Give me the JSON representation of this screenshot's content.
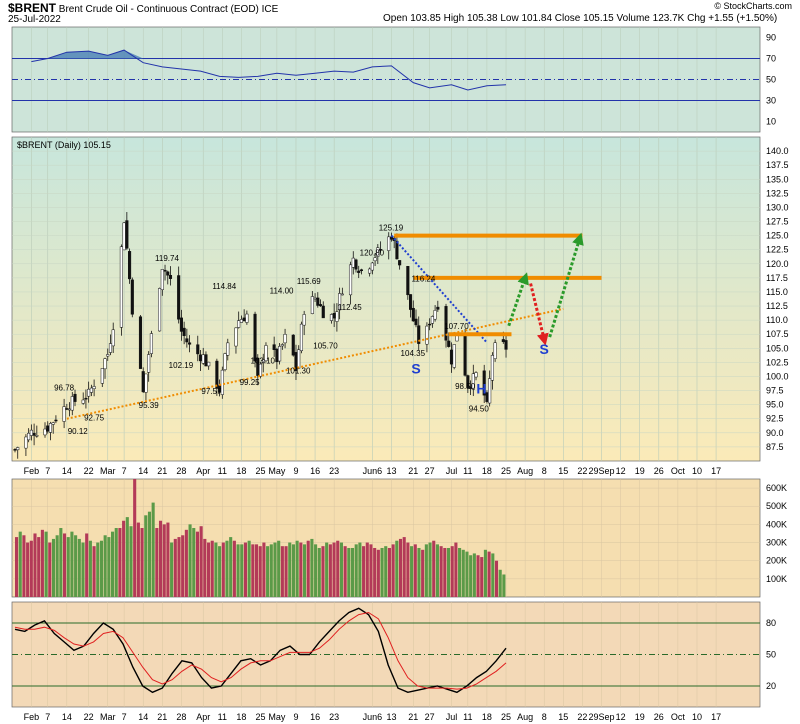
{
  "header": {
    "symbol": "$BRENT",
    "name": "Brent Crude Oil - Continuous Contract (EOD)",
    "exchange": "ICE",
    "date": "25-Jul-2022",
    "ohlc": "Open 103.85  High 105.38  Low 101.84  Close 105.15  Volume 123.7K  Chg +1.55 (+1.50%)",
    "copyright": "© StockCharts.com"
  },
  "colors": {
    "rsi_bg": "#cde4d9",
    "price_bg_top": "#c7e6dc",
    "price_bg_bottom": "#fbeab8",
    "volume_bg": "#f5deb0",
    "stoch_bg": "#f3d9b7",
    "up_bar": "#5b9a48",
    "down_bar": "#b33a58",
    "orange": "#f08c00",
    "blue_dotted": "#1f3fd0",
    "red_arrow": "#e02020",
    "green_arrow": "#2a9a2a",
    "rsi_line": "#2233aa",
    "stoch_k": "#000000",
    "stoch_d": "#e02020"
  },
  "chart_data": [
    {
      "type": "line",
      "panel": "rsi",
      "ylim": [
        0,
        100
      ],
      "ticks": [
        90,
        70,
        50,
        30,
        10
      ],
      "reference_levels": [
        70,
        50,
        30
      ],
      "x": [
        "Feb 1",
        "Feb 7",
        "Feb 14",
        "Feb 22",
        "Mar 1",
        "Mar 7",
        "Mar 14",
        "Mar 21",
        "Mar 28",
        "Apr 4",
        "Apr 11",
        "Apr 18",
        "Apr 25",
        "May 2",
        "May 9",
        "May 16",
        "May 23",
        "May 30",
        "Jun 6",
        "Jun 13",
        "Jun 21",
        "Jun 27",
        "Jul 5",
        "Jul 11",
        "Jul 18",
        "Jul 25"
      ],
      "series": [
        {
          "values": [
            67,
            70,
            76,
            77,
            73,
            78,
            66,
            62,
            60,
            58,
            53,
            52,
            53,
            56,
            54,
            56,
            58,
            57,
            62,
            63,
            47,
            42,
            45,
            40,
            44,
            45
          ]
        }
      ]
    },
    {
      "type": "line",
      "panel": "price",
      "title": "$BRENT (Daily) 105.15",
      "ylim": [
        85,
        142.5
      ],
      "y_ticks": [
        140,
        137.5,
        135,
        132.5,
        130,
        127.5,
        125,
        122.5,
        120,
        117.5,
        115,
        112.5,
        110,
        107.5,
        105,
        102.5,
        100,
        97.5,
        95,
        92.5,
        90,
        87.5
      ],
      "x_labels": [
        "Feb",
        "7",
        "14",
        "22",
        "Mar",
        "7",
        "14",
        "21",
        "28",
        "Apr",
        "11",
        "18",
        "25",
        "May",
        "9",
        "16",
        "23",
        "Jun6",
        "13",
        "21",
        "27",
        "Jul",
        "11",
        "18",
        "25",
        "Aug",
        "8",
        "15",
        "22",
        "29Sep",
        "12",
        "19",
        "26",
        "Oct",
        "10",
        "17"
      ],
      "x": [
        "Jan 26",
        "Feb 1",
        "Feb 7",
        "Feb 14",
        "Feb 22",
        "Mar 1",
        "Mar 4",
        "Mar 7",
        "Mar 10",
        "Mar 14",
        "Mar 16",
        "Mar 21",
        "Mar 24",
        "Mar 28",
        "Apr 1",
        "Apr 5",
        "Apr 11",
        "Apr 14",
        "Apr 18",
        "Apr 21",
        "Apr 25",
        "Apr 28",
        "May 2",
        "May 6",
        "May 9",
        "May 12",
        "May 16",
        "May 19",
        "May 23",
        "May 26",
        "May 30",
        "Jun 3",
        "Jun 6",
        "Jun 9",
        "Jun 13",
        "Jun 16",
        "Jun 21",
        "Jun 24",
        "Jun 27",
        "Jun 30",
        "Jul 5",
        "Jul 7",
        "Jul 11",
        "Jul 13",
        "Jul 15",
        "Jul 18",
        "Jul 20",
        "Jul 22",
        "Jul 25"
      ],
      "series": [
        {
          "values": [
            87,
            90.1,
            91,
            95,
            96.8,
            104,
            112,
            128,
            112,
            97,
            104,
            119.7,
            117,
            108,
            104.5,
            103.5,
            97.6,
            106,
            110,
            111,
            99.3,
            106,
            103.1,
            108,
            101.3,
            112,
            114,
            111.5,
            110.5,
            115.7,
            120.8,
            118,
            121,
            122.5,
            125.2,
            120,
            110,
            104.4,
            110,
            113,
            103,
            107.7,
            98.5,
            99.5,
            101,
            94.5,
            104,
            106,
            105.15
          ]
        }
      ],
      "annotations": [
        "96.78",
        "90.12",
        "92.75",
        "95.39",
        "119.74",
        "102.19",
        "97.57",
        "114.84",
        "103.10",
        "99.25",
        "114.00",
        "101.30",
        "115.69",
        "105.70",
        "112.45",
        "120.80",
        "125.19",
        "104.35",
        "116.24",
        "107.70",
        "98.50",
        "94.50"
      ],
      "pattern_labels": [
        "S",
        "H",
        "S"
      ],
      "support_line": {
        "from": {
          "x": "Feb 14",
          "y": 92.5
        },
        "to": {
          "x": "Aug 15",
          "y": 112
        }
      },
      "resistance_levels": [
        125,
        117.5,
        107.5
      ]
    },
    {
      "type": "bar",
      "panel": "volume",
      "ylim": [
        0,
        650
      ],
      "y_ticks": [
        "600K",
        "500K",
        "400K",
        "300K",
        "200K",
        "100K"
      ],
      "series": [
        {
          "name": "Volume (K)",
          "values": [
            330,
            360,
            340,
            300,
            310,
            350,
            330,
            370,
            360,
            300,
            320,
            340,
            380,
            350,
            330,
            360,
            340,
            320,
            300,
            350,
            310,
            280,
            300,
            310,
            340,
            330,
            360,
            380,
            380,
            420,
            440,
            390,
            650,
            410,
            380,
            450,
            470,
            520,
            380,
            420,
            400,
            410,
            300,
            320,
            330,
            340,
            370,
            400,
            380,
            360,
            390,
            320,
            300,
            310,
            300,
            280,
            300,
            310,
            330,
            310,
            290,
            290,
            300,
            310,
            290,
            290,
            280,
            300,
            280,
            290,
            300,
            310,
            280,
            280,
            300,
            290,
            310,
            300,
            290,
            310,
            320,
            290,
            270,
            280,
            300,
            290,
            300,
            310,
            300,
            280,
            270,
            270,
            290,
            300,
            280,
            300,
            290,
            270,
            260,
            270,
            280,
            270,
            290,
            310,
            320,
            330,
            300,
            280,
            290,
            270,
            260,
            290,
            300,
            310,
            290,
            280,
            270,
            270,
            280,
            300,
            270,
            260,
            250,
            230,
            240,
            230,
            220,
            260,
            250,
            240,
            200,
            150,
            124
          ]
        }
      ]
    },
    {
      "type": "line",
      "panel": "stochastic",
      "ylim": [
        0,
        100
      ],
      "y_ticks": [
        80,
        50,
        20
      ],
      "reference_levels": [
        80,
        50,
        20
      ],
      "series": [
        {
          "values": [
            74,
            72,
            78,
            82,
            70,
            62,
            54,
            58,
            70,
            80,
            74,
            60,
            38,
            20,
            14,
            18,
            32,
            44,
            42,
            28,
            18,
            20,
            32,
            44,
            46,
            40,
            44,
            54,
            58,
            50,
            50,
            62,
            72,
            82,
            90,
            94,
            88,
            72,
            40,
            18,
            14,
            16,
            18,
            20,
            17,
            14,
            20,
            28,
            34,
            44,
            56
          ]
        },
        {
          "values": [
            76,
            74,
            74,
            76,
            73,
            66,
            60,
            58,
            62,
            70,
            72,
            66,
            52,
            38,
            26,
            22,
            26,
            34,
            40,
            36,
            28,
            24,
            28,
            36,
            42,
            44,
            44,
            48,
            52,
            52,
            52,
            56,
            64,
            74,
            82,
            88,
            90,
            84,
            66,
            44,
            28,
            20,
            18,
            18,
            18,
            17,
            18,
            22,
            28,
            34,
            42
          ]
        }
      ]
    }
  ]
}
